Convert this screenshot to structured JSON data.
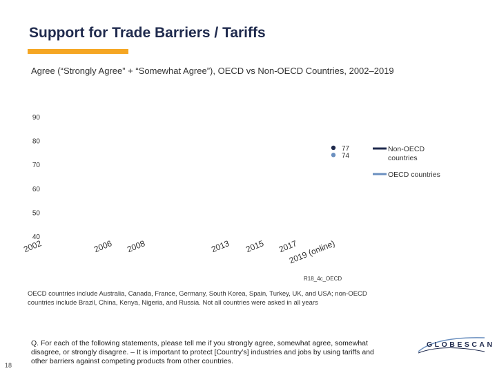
{
  "header": {
    "title": "Support for Trade Barriers / Tariffs",
    "subtitle": "Agree (“Strongly Agree” + “Somewhat Agree”), OECD vs Non-OECD Countries, 2002–2019",
    "accent_color": "#f5a623"
  },
  "chart_data": {
    "type": "line",
    "categories": [
      "2002",
      "2006",
      "2008",
      "2013",
      "2015",
      "2017",
      "2019 (online)"
    ],
    "ylim": [
      40,
      90
    ],
    "yticks": [
      40,
      50,
      60,
      70,
      80,
      90
    ],
    "grid": false,
    "legend_position": "right",
    "series": [
      {
        "name": "Non-OECD countries",
        "color": "#1f2a4d",
        "values": [
          null,
          null,
          null,
          null,
          null,
          null,
          77
        ],
        "labels": [
          "",
          "",
          "",
          "",
          "",
          "",
          "77"
        ]
      },
      {
        "name": "OECD countries",
        "color": "#6a8fbf",
        "values": [
          null,
          null,
          null,
          null,
          null,
          null,
          74
        ],
        "labels": [
          "",
          "",
          "",
          "",
          "",
          "",
          "74"
        ]
      }
    ]
  },
  "chart_id": "R18_4c_OECD",
  "note": "OECD countries include Australia, Canada, France, Germany, South Korea, Spain, Turkey, UK, and USA; non-OECD countries include Brazil, China, Kenya, Nigeria, and Russia. Not all countries were asked in all years",
  "question": "Q. For each of the following statements, please tell me if you strongly agree, somewhat agree, somewhat disagree, or strongly disagree. – It is important to protect [Country’s] industries and jobs by using tariffs and other barriers against competing products from other countries.",
  "footer": {
    "page_number": "18",
    "logo_text": "GLOBESCAN"
  }
}
